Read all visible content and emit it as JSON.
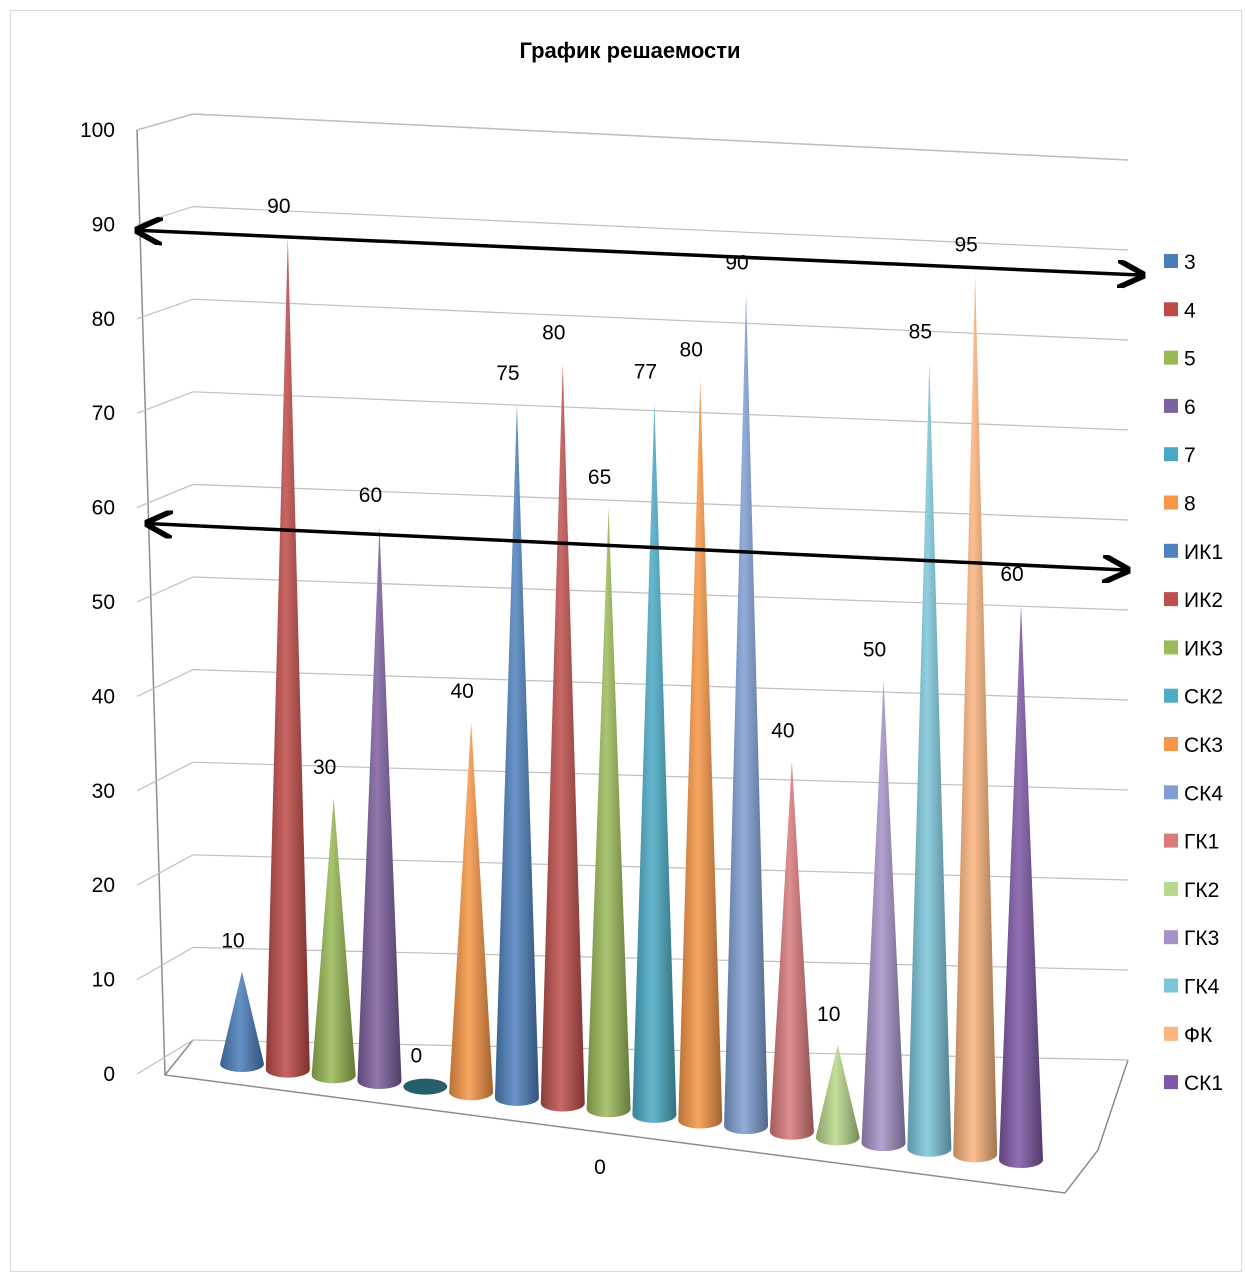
{
  "chart_data": {
    "type": "bar",
    "shape": "cone-3d",
    "title": "График решаемости",
    "xlabel": "",
    "ylabel": "",
    "ylim": [
      0,
      100
    ],
    "yticks": [
      "0",
      "10",
      "20",
      "30",
      "40",
      "50",
      "60",
      "70",
      "80",
      "90",
      "100"
    ],
    "categories": [
      "0"
    ],
    "series": [
      {
        "name": "3",
        "values": [
          10
        ],
        "color": "#4A7EBB"
      },
      {
        "name": "4",
        "values": [
          90
        ],
        "color": "#BE4B48"
      },
      {
        "name": "5",
        "values": [
          30
        ],
        "color": "#98B954"
      },
      {
        "name": "6",
        "values": [
          60
        ],
        "color": "#7D60A0"
      },
      {
        "name": "7",
        "values": [
          0
        ],
        "color": "#46AAC5"
      },
      {
        "name": "8",
        "values": [
          40
        ],
        "color": "#F79646"
      },
      {
        "name": "ИК1",
        "values": [
          75
        ],
        "color": "#4F81BD"
      },
      {
        "name": "ИК2",
        "values": [
          80
        ],
        "color": "#C0504D"
      },
      {
        "name": "ИК3",
        "values": [
          65
        ],
        "color": "#9BBB59"
      },
      {
        "name": "СК2",
        "values": [
          77
        ],
        "color": "#4BACC6"
      },
      {
        "name": "СК3",
        "values": [
          80
        ],
        "color": "#F79646"
      },
      {
        "name": "СК4",
        "values": [
          90
        ],
        "color": "#7F9FD3"
      },
      {
        "name": "ГК1",
        "values": [
          40
        ],
        "color": "#D9797A"
      },
      {
        "name": "ГК2",
        "values": [
          10
        ],
        "color": "#B8D88B"
      },
      {
        "name": "ГК3",
        "values": [
          50
        ],
        "color": "#A593C8"
      },
      {
        "name": "ГК4",
        "values": [
          85
        ],
        "color": "#7DC6DA"
      },
      {
        "name": "ФК",
        "values": [
          95
        ],
        "color": "#FAB47D"
      },
      {
        "name": "СК1",
        "values": [
          60
        ],
        "color": "#7E58A6"
      }
    ],
    "data_labels": [
      "10",
      "90",
      "30",
      "60",
      "0",
      "40",
      "75",
      "80",
      "65",
      "77",
      "80",
      "90",
      "40",
      "10",
      "50",
      "85",
      "95",
      "60"
    ],
    "legend": "right",
    "grid": true,
    "annotations": [
      {
        "type": "double-arrow",
        "level": 90
      },
      {
        "type": "double-arrow",
        "level": 60
      }
    ]
  }
}
